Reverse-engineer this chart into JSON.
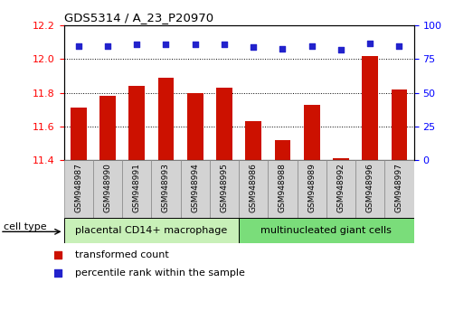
{
  "title": "GDS5314 / A_23_P20970",
  "samples": [
    "GSM948987",
    "GSM948990",
    "GSM948991",
    "GSM948993",
    "GSM948994",
    "GSM948995",
    "GSM948986",
    "GSM948988",
    "GSM948989",
    "GSM948992",
    "GSM948996",
    "GSM948997"
  ],
  "bar_values": [
    11.71,
    11.78,
    11.84,
    11.89,
    11.8,
    11.83,
    11.63,
    11.52,
    11.73,
    11.41,
    12.02,
    11.82
  ],
  "percentile_values": [
    85,
    85,
    86,
    86,
    86,
    86,
    84,
    83,
    85,
    82,
    87,
    85
  ],
  "group1_count": 6,
  "group2_count": 6,
  "group1_label": "placental CD14+ macrophage",
  "group2_label": "multinucleated giant cells",
  "group1_color": "#c8f0b8",
  "group2_color": "#7add7a",
  "bar_color": "#cc1100",
  "dot_color": "#2222cc",
  "ylim_left": [
    11.4,
    12.2
  ],
  "ylim_right": [
    0,
    100
  ],
  "yticks_left": [
    11.4,
    11.6,
    11.8,
    12.0,
    12.2
  ],
  "yticks_right": [
    0,
    25,
    50,
    75,
    100
  ],
  "cell_type_label": "cell type",
  "legend_bar_label": "transformed count",
  "legend_dot_label": "percentile rank within the sample",
  "hgrid_values": [
    11.6,
    11.8,
    12.0
  ],
  "tick_label_bg": "#d3d3d3",
  "tick_label_edge": "#888888"
}
